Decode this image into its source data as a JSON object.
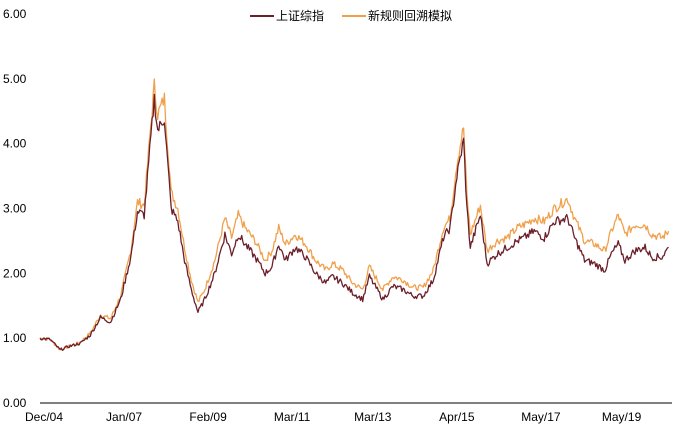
{
  "chart_data": {
    "type": "line",
    "title": "",
    "xlabel": "",
    "ylabel": "",
    "ylim": [
      0,
      6
    ],
    "yticks": [
      0,
      1,
      2,
      3,
      4,
      5,
      6
    ],
    "ytick_labels": [
      "0.00",
      "1.00",
      "2.00",
      "3.00",
      "4.00",
      "5.00",
      "6.00"
    ],
    "xlim": [
      "2004-12",
      "2020-08"
    ],
    "xticks": [
      "2004-12",
      "2007-01",
      "2009-02",
      "2011-03",
      "2013-03",
      "2015-04",
      "2017-05",
      "2019-05"
    ],
    "xtick_labels": [
      "Dec/04",
      "Jan/07",
      "Feb/09",
      "Mar/11",
      "Mar/13",
      "Apr/15",
      "May/17",
      "May/19"
    ],
    "grid": false,
    "legend_position": "top",
    "series": [
      {
        "name": "上证综指",
        "color": "#6b1f2a",
        "points": [
          [
            "2004-12",
            1.0
          ],
          [
            "2005-03",
            0.98
          ],
          [
            "2005-06",
            0.82
          ],
          [
            "2005-09",
            0.88
          ],
          [
            "2005-12",
            0.92
          ],
          [
            "2006-03",
            1.05
          ],
          [
            "2006-06",
            1.32
          ],
          [
            "2006-09",
            1.25
          ],
          [
            "2006-12",
            1.6
          ],
          [
            "2007-03",
            2.25
          ],
          [
            "2007-05",
            2.95
          ],
          [
            "2007-07",
            2.9
          ],
          [
            "2007-09",
            4.1
          ],
          [
            "2007-10",
            4.7
          ],
          [
            "2007-11",
            4.2
          ],
          [
            "2008-01",
            4.4
          ],
          [
            "2008-03",
            3.0
          ],
          [
            "2008-05",
            2.8
          ],
          [
            "2008-07",
            2.2
          ],
          [
            "2008-09",
            1.75
          ],
          [
            "2008-11",
            1.4
          ],
          [
            "2009-01",
            1.6
          ],
          [
            "2009-04",
            2.0
          ],
          [
            "2009-07",
            2.6
          ],
          [
            "2009-09",
            2.3
          ],
          [
            "2009-11",
            2.6
          ],
          [
            "2010-01",
            2.45
          ],
          [
            "2010-04",
            2.25
          ],
          [
            "2010-07",
            2.0
          ],
          [
            "2010-09",
            2.1
          ],
          [
            "2010-11",
            2.45
          ],
          [
            "2011-01",
            2.2
          ],
          [
            "2011-04",
            2.4
          ],
          [
            "2011-07",
            2.25
          ],
          [
            "2011-10",
            2.0
          ],
          [
            "2012-01",
            1.85
          ],
          [
            "2012-03",
            1.95
          ],
          [
            "2012-06",
            1.85
          ],
          [
            "2012-09",
            1.7
          ],
          [
            "2012-12",
            1.6
          ],
          [
            "2013-02",
            1.95
          ],
          [
            "2013-06",
            1.6
          ],
          [
            "2013-09",
            1.8
          ],
          [
            "2013-12",
            1.75
          ],
          [
            "2014-03",
            1.65
          ],
          [
            "2014-06",
            1.65
          ],
          [
            "2014-09",
            1.9
          ],
          [
            "2014-12",
            2.55
          ],
          [
            "2015-02",
            2.7
          ],
          [
            "2015-04",
            3.5
          ],
          [
            "2015-06",
            4.05
          ],
          [
            "2015-07",
            3.0
          ],
          [
            "2015-08",
            2.4
          ],
          [
            "2015-11",
            2.9
          ],
          [
            "2016-01",
            2.15
          ],
          [
            "2016-04",
            2.3
          ],
          [
            "2016-07",
            2.4
          ],
          [
            "2016-10",
            2.5
          ],
          [
            "2016-12",
            2.55
          ],
          [
            "2017-03",
            2.65
          ],
          [
            "2017-06",
            2.55
          ],
          [
            "2017-09",
            2.8
          ],
          [
            "2018-01",
            2.85
          ],
          [
            "2018-03",
            2.55
          ],
          [
            "2018-06",
            2.2
          ],
          [
            "2018-09",
            2.15
          ],
          [
            "2018-12",
            2.05
          ],
          [
            "2019-02",
            2.3
          ],
          [
            "2019-04",
            2.45
          ],
          [
            "2019-06",
            2.2
          ],
          [
            "2019-09",
            2.35
          ],
          [
            "2019-12",
            2.4
          ],
          [
            "2020-02",
            2.25
          ],
          [
            "2020-05",
            2.25
          ],
          [
            "2020-07",
            2.4
          ]
        ]
      },
      {
        "name": "新规则回溯模拟",
        "color": "#f0a04b",
        "points": [
          [
            "2004-12",
            1.0
          ],
          [
            "2005-03",
            0.98
          ],
          [
            "2005-06",
            0.82
          ],
          [
            "2005-09",
            0.88
          ],
          [
            "2005-12",
            0.94
          ],
          [
            "2006-03",
            1.08
          ],
          [
            "2006-06",
            1.36
          ],
          [
            "2006-09",
            1.3
          ],
          [
            "2006-12",
            1.65
          ],
          [
            "2007-03",
            2.35
          ],
          [
            "2007-05",
            3.1
          ],
          [
            "2007-07",
            3.05
          ],
          [
            "2007-09",
            4.3
          ],
          [
            "2007-10",
            4.9
          ],
          [
            "2007-11",
            4.45
          ],
          [
            "2008-01",
            4.7
          ],
          [
            "2008-03",
            3.25
          ],
          [
            "2008-05",
            3.0
          ],
          [
            "2008-07",
            2.4
          ],
          [
            "2008-09",
            1.9
          ],
          [
            "2008-11",
            1.55
          ],
          [
            "2009-01",
            1.75
          ],
          [
            "2009-04",
            2.2
          ],
          [
            "2009-07",
            2.85
          ],
          [
            "2009-09",
            2.55
          ],
          [
            "2009-11",
            2.9
          ],
          [
            "2010-01",
            2.7
          ],
          [
            "2010-04",
            2.5
          ],
          [
            "2010-07",
            2.2
          ],
          [
            "2010-09",
            2.35
          ],
          [
            "2010-11",
            2.7
          ],
          [
            "2011-01",
            2.45
          ],
          [
            "2011-04",
            2.6
          ],
          [
            "2011-07",
            2.45
          ],
          [
            "2011-10",
            2.2
          ],
          [
            "2012-01",
            2.05
          ],
          [
            "2012-03",
            2.15
          ],
          [
            "2012-06",
            2.05
          ],
          [
            "2012-09",
            1.85
          ],
          [
            "2012-12",
            1.75
          ],
          [
            "2013-02",
            2.1
          ],
          [
            "2013-06",
            1.75
          ],
          [
            "2013-09",
            1.95
          ],
          [
            "2013-12",
            1.9
          ],
          [
            "2014-03",
            1.78
          ],
          [
            "2014-06",
            1.78
          ],
          [
            "2014-09",
            2.05
          ],
          [
            "2014-12",
            2.7
          ],
          [
            "2015-02",
            2.85
          ],
          [
            "2015-04",
            3.7
          ],
          [
            "2015-06",
            4.25
          ],
          [
            "2015-07",
            3.2
          ],
          [
            "2015-08",
            2.6
          ],
          [
            "2015-11",
            3.05
          ],
          [
            "2016-01",
            2.35
          ],
          [
            "2016-04",
            2.5
          ],
          [
            "2016-07",
            2.55
          ],
          [
            "2016-10",
            2.7
          ],
          [
            "2016-12",
            2.75
          ],
          [
            "2017-03",
            2.85
          ],
          [
            "2017-06",
            2.8
          ],
          [
            "2017-09",
            3.0
          ],
          [
            "2018-01",
            3.15
          ],
          [
            "2018-03",
            2.85
          ],
          [
            "2018-06",
            2.5
          ],
          [
            "2018-09",
            2.45
          ],
          [
            "2018-12",
            2.35
          ],
          [
            "2019-02",
            2.65
          ],
          [
            "2019-04",
            2.9
          ],
          [
            "2019-06",
            2.6
          ],
          [
            "2019-09",
            2.75
          ],
          [
            "2019-12",
            2.75
          ],
          [
            "2020-02",
            2.6
          ],
          [
            "2020-05",
            2.55
          ],
          [
            "2020-07",
            2.65
          ]
        ]
      }
    ]
  }
}
